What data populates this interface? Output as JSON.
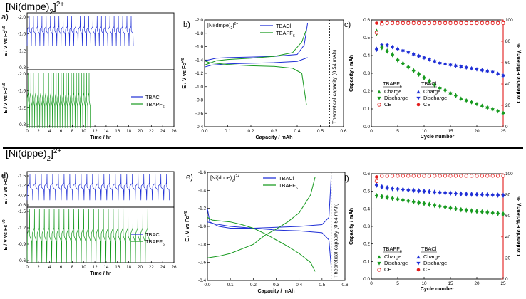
{
  "colors": {
    "blue": "#1f2fd6",
    "green": "#179a1f",
    "red": "#e21c1c",
    "black": "#000000"
  },
  "sections": [
    {
      "compound": "[Ni(dmpe)2]2+",
      "compound_sub": "2",
      "compound_sup": "2+",
      "compound_prefix": "[Ni(dmpe)",
      "compound_suffix": "]"
    },
    {
      "compound": "[Ni(dppe)2]2+",
      "compound_sub": "2",
      "compound_sup": "2+",
      "compound_prefix": "[Ni(dppe)",
      "compound_suffix": "]"
    }
  ],
  "chart_data": [
    {
      "id": "a",
      "panel_label": "a)",
      "type": "line",
      "xlabel": "Time / hr",
      "ylabel_top": "E / V vs Fc+/0",
      "ylabel_bottom": "E / V vs Fc+/0",
      "xlim": [
        0,
        26
      ],
      "xticks": [
        "0",
        "2",
        "4",
        "6",
        "8",
        "10",
        "12",
        "14",
        "16",
        "18",
        "20",
        "22",
        "24",
        "26"
      ],
      "top_yticks": [
        "-2.0",
        "-1.6",
        "-1.2",
        "-0.8"
      ],
      "bottom_yticks": [
        "-2.0",
        "-1.6",
        "-1.2",
        "-0.8"
      ],
      "series": [
        {
          "name": "TBACl",
          "color": "blue",
          "cycles": 25,
          "t_end": 18.8,
          "E_low": -1.32,
          "E_high": -2.02
        },
        {
          "name": "TBAPF6",
          "color": "green",
          "cycles": 25,
          "t_end": 11.2,
          "E_low": -0.72,
          "E_high": -2.02
        }
      ],
      "legend": [
        "TBACl",
        "TBAPF6"
      ]
    },
    {
      "id": "b",
      "panel_label": "b)",
      "type": "line",
      "inset_title": "[Ni(dmpe)2]2+",
      "xlabel": "Capacity / mAh",
      "ylabel": "E / V vs Fc+/0",
      "xlim": [
        0,
        0.6
      ],
      "ylim": [
        -0.4,
        -2.1
      ],
      "xticks": [
        "0.0",
        "0.1",
        "0.2",
        "0.3",
        "0.4",
        "0.5",
        "0.6"
      ],
      "yticks": [
        "-0.4",
        "-0.6",
        "-0.8",
        "-1.0",
        "-1.2",
        "-1.4",
        "-1.6",
        "-1.8",
        "-2.0"
      ],
      "theoretical_capacity": 0.54,
      "theoretical_label": "Theoretical capacity (0.54 mAh)",
      "series": [
        {
          "name": "TBACl",
          "color": "blue",
          "charge": [
            [
              0,
              -1.45
            ],
            [
              0.05,
              -1.49
            ],
            [
              0.1,
              -1.5
            ],
            [
              0.2,
              -1.51
            ],
            [
              0.3,
              -1.52
            ],
            [
              0.4,
              -1.55
            ],
            [
              0.43,
              -1.7
            ],
            [
              0.445,
              -2.05
            ]
          ],
          "discharge": [
            [
              0.445,
              -1.5
            ],
            [
              0.4,
              -1.44
            ],
            [
              0.3,
              -1.42
            ],
            [
              0.2,
              -1.41
            ],
            [
              0.1,
              -1.4
            ],
            [
              0.03,
              -1.38
            ],
            [
              0,
              -1.35
            ]
          ]
        },
        {
          "name": "TBAPF6",
          "color": "green",
          "charge": [
            [
              0,
              -1.38
            ],
            [
              0.05,
              -1.45
            ],
            [
              0.1,
              -1.47
            ],
            [
              0.2,
              -1.49
            ],
            [
              0.3,
              -1.52
            ],
            [
              0.38,
              -1.58
            ],
            [
              0.42,
              -1.75
            ],
            [
              0.44,
              -1.95
            ]
          ],
          "discharge": [
            [
              0.44,
              -0.75
            ],
            [
              0.42,
              -1.25
            ],
            [
              0.38,
              -1.33
            ],
            [
              0.3,
              -1.36
            ],
            [
              0.2,
              -1.37
            ],
            [
              0.1,
              -1.39
            ],
            [
              0.02,
              -1.42
            ],
            [
              0,
              -1.45
            ]
          ]
        }
      ],
      "legend": [
        "TBACl",
        "TBAPF6"
      ]
    },
    {
      "id": "c",
      "panel_label": "c)",
      "type": "scatter",
      "xlabel": "Cycle number",
      "ylabel": "Capacity / mAh",
      "ylabel_right": "Coulombic Efficiency, %",
      "xlim": [
        0,
        25
      ],
      "ylim": [
        0,
        0.6
      ],
      "ylim_right": [
        0,
        100
      ],
      "xticks": [
        "0",
        "5",
        "10",
        "15",
        "20",
        "25"
      ],
      "yticks": [
        "0.0",
        "0.1",
        "0.2",
        "0.3",
        "0.4",
        "0.5",
        "0.6"
      ],
      "yticks_right": [
        "0",
        "20",
        "40",
        "60",
        "80",
        "100"
      ],
      "series": [
        {
          "name": "TBACl Charge",
          "color": "blue",
          "marker": "triangle-up",
          "values": [
            0.44,
            0.46,
            0.46,
            0.45,
            0.44,
            0.43,
            0.42,
            0.41,
            0.4,
            0.39,
            0.38,
            0.37,
            0.36,
            0.355,
            0.35,
            0.345,
            0.34,
            0.335,
            0.33,
            0.325,
            0.32,
            0.315,
            0.31,
            0.3,
            0.29
          ]
        },
        {
          "name": "TBACl Discharge",
          "color": "blue",
          "marker": "triangle-down",
          "values": [
            0.43,
            0.455,
            0.455,
            0.445,
            0.435,
            0.425,
            0.415,
            0.405,
            0.395,
            0.385,
            0.375,
            0.365,
            0.355,
            0.35,
            0.345,
            0.34,
            0.335,
            0.33,
            0.325,
            0.32,
            0.315,
            0.31,
            0.305,
            0.295,
            0.285
          ]
        },
        {
          "name": "TBAPF6 Charge",
          "color": "green",
          "marker": "triangle-up",
          "values": [
            0.54,
            0.45,
            0.43,
            0.41,
            0.38,
            0.36,
            0.34,
            0.32,
            0.3,
            0.28,
            0.26,
            0.24,
            0.22,
            0.21,
            0.19,
            0.18,
            0.16,
            0.15,
            0.14,
            0.13,
            0.12,
            0.11,
            0.1,
            0.09,
            0.08
          ]
        },
        {
          "name": "TBAPF6 Discharge",
          "color": "green",
          "marker": "triangle-down",
          "values": [
            0.52,
            0.44,
            0.42,
            0.4,
            0.37,
            0.35,
            0.33,
            0.31,
            0.29,
            0.27,
            0.25,
            0.23,
            0.215,
            0.2,
            0.185,
            0.17,
            0.155,
            0.145,
            0.135,
            0.125,
            0.115,
            0.105,
            0.095,
            0.085,
            0.075
          ]
        },
        {
          "name": "TBACl CE",
          "color": "red",
          "marker": "circle",
          "axis": "right",
          "values": [
            97,
            98,
            98,
            98,
            98,
            98,
            98,
            98,
            98,
            98,
            98,
            98,
            98,
            98,
            98,
            98,
            98,
            98,
            98,
            98,
            98,
            98,
            98,
            98,
            98
          ]
        },
        {
          "name": "TBAPF6 CE",
          "color": "red",
          "marker": "open-circle",
          "axis": "right",
          "values": [
            88,
            96,
            97,
            97,
            97,
            97,
            97,
            97,
            97,
            97,
            97,
            97,
            97,
            97,
            97,
            97,
            97,
            97,
            97,
            97,
            97,
            97,
            97,
            97,
            97
          ]
        }
      ],
      "legend": {
        "group_left": "TBAPF6",
        "group_right": "TBACl",
        "rows": [
          "Charge",
          "Discharge",
          "CE"
        ]
      }
    },
    {
      "id": "d",
      "panel_label": "d)",
      "type": "line",
      "xlabel": "Time / hr",
      "ylabel_top": "E / V vs Fc+/0",
      "ylabel_bottom": "E / V vs Fc+/0",
      "xlim": [
        0,
        26
      ],
      "xticks": [
        "0",
        "2",
        "4",
        "6",
        "8",
        "10",
        "12",
        "14",
        "16",
        "18",
        "20",
        "22",
        "24",
        "26"
      ],
      "top_yticks": [
        "-1.5",
        "-1.2",
        "-0.9",
        "-0.6"
      ],
      "bottom_yticks": [
        "-1.5",
        "-1.2",
        "-0.9",
        "-0.6"
      ],
      "series": [
        {
          "name": "TBACl",
          "color": "blue",
          "cycles": 25,
          "t_end": 25.2,
          "E_low": -0.75,
          "E_high": -1.55
        },
        {
          "name": "TBAPF6",
          "color": "green",
          "cycles": 25,
          "t_end": 21.8,
          "E_low": -0.55,
          "E_high": -1.55
        }
      ],
      "legend": [
        "TBACl",
        "TBAPF6"
      ]
    },
    {
      "id": "e",
      "panel_label": "e)",
      "type": "line",
      "inset_title": "[Ni(dppe)2]2+",
      "xlabel": "Capacity / mAh",
      "ylabel": "E / V vs Fc+/0",
      "xlim": [
        0,
        0.6
      ],
      "ylim": [
        -0.4,
        -1.6
      ],
      "xticks": [
        "0.0",
        "0.1",
        "0.2",
        "0.3",
        "0.4",
        "0.5",
        "0.6"
      ],
      "yticks": [
        "-0.4",
        "-0.6",
        "-0.8",
        "-1.0",
        "-1.2",
        "-1.4",
        "-1.6"
      ],
      "theoretical_capacity": 0.54,
      "theoretical_label": "Theoretical capacity (0.54 mAh)",
      "series": [
        {
          "name": "TBACl",
          "color": "blue",
          "charge": [
            [
              0,
              -1.2
            ],
            [
              0.01,
              -1.05
            ],
            [
              0.05,
              -1.0
            ],
            [
              0.1,
              -0.98
            ],
            [
              0.2,
              -0.98
            ],
            [
              0.3,
              -0.99
            ],
            [
              0.4,
              -1.0
            ],
            [
              0.5,
              -1.02
            ],
            [
              0.53,
              -1.1
            ],
            [
              0.54,
              -1.55
            ]
          ],
          "discharge": [
            [
              0.54,
              -0.55
            ],
            [
              0.53,
              -0.85
            ],
            [
              0.5,
              -0.93
            ],
            [
              0.4,
              -0.95
            ],
            [
              0.3,
              -0.96
            ],
            [
              0.2,
              -0.98
            ],
            [
              0.1,
              -1.0
            ],
            [
              0.03,
              -1.03
            ],
            [
              0,
              -1.05
            ]
          ]
        },
        {
          "name": "TBAPF6",
          "color": "green",
          "charge": [
            [
              0,
              -0.65
            ],
            [
              0.05,
              -0.67
            ],
            [
              0.1,
              -0.7
            ],
            [
              0.2,
              -0.8
            ],
            [
              0.25,
              -0.9
            ],
            [
              0.3,
              -0.97
            ],
            [
              0.35,
              -1.05
            ],
            [
              0.4,
              -1.15
            ],
            [
              0.45,
              -1.35
            ],
            [
              0.47,
              -1.55
            ]
          ],
          "discharge": [
            [
              0.47,
              -0.5
            ],
            [
              0.45,
              -0.6
            ],
            [
              0.4,
              -0.7
            ],
            [
              0.35,
              -0.78
            ],
            [
              0.3,
              -0.85
            ],
            [
              0.25,
              -0.92
            ],
            [
              0.2,
              -0.98
            ],
            [
              0.15,
              -1.02
            ],
            [
              0.1,
              -1.05
            ],
            [
              0.02,
              -1.07
            ],
            [
              0,
              -1.1
            ]
          ]
        }
      ],
      "legend": [
        "TBACl",
        "TBAPF6"
      ]
    },
    {
      "id": "f",
      "panel_label": "f)",
      "type": "scatter",
      "xlabel": "Cycle number",
      "ylabel": "Capacity / mAh",
      "ylabel_right": "Coulombic Efficiency, %",
      "xlim": [
        0,
        25
      ],
      "ylim": [
        0,
        0.6
      ],
      "ylim_right": [
        0,
        100
      ],
      "xticks": [
        "0",
        "5",
        "10",
        "15",
        "20",
        "25"
      ],
      "yticks": [
        "0.0",
        "0.1",
        "0.2",
        "0.3",
        "0.4",
        "0.5",
        "0.6"
      ],
      "yticks_right": [
        "0",
        "20",
        "40",
        "60",
        "80",
        "100"
      ],
      "series": [
        {
          "name": "TBACl Charge",
          "color": "blue",
          "marker": "triangle-up",
          "values": [
            0.54,
            0.53,
            0.525,
            0.52,
            0.518,
            0.515,
            0.512,
            0.51,
            0.508,
            0.505,
            0.503,
            0.5,
            0.498,
            0.496,
            0.494,
            0.492,
            0.49,
            0.489,
            0.488,
            0.487,
            0.486,
            0.485,
            0.484,
            0.483,
            0.482
          ]
        },
        {
          "name": "TBACl Discharge",
          "color": "blue",
          "marker": "triangle-down",
          "values": [
            0.53,
            0.52,
            0.515,
            0.51,
            0.508,
            0.505,
            0.502,
            0.5,
            0.498,
            0.495,
            0.493,
            0.49,
            0.488,
            0.486,
            0.484,
            0.482,
            0.48,
            0.479,
            0.478,
            0.477,
            0.476,
            0.475,
            0.474,
            0.473,
            0.472
          ]
        },
        {
          "name": "TBAPF6 Charge",
          "color": "green",
          "marker": "triangle-up",
          "values": [
            0.48,
            0.475,
            0.47,
            0.465,
            0.46,
            0.455,
            0.45,
            0.445,
            0.44,
            0.435,
            0.43,
            0.425,
            0.42,
            0.415,
            0.41,
            0.405,
            0.4,
            0.397,
            0.394,
            0.391,
            0.388,
            0.385,
            0.382,
            0.379,
            0.376
          ]
        },
        {
          "name": "TBAPF6 Discharge",
          "color": "green",
          "marker": "triangle-down",
          "values": [
            0.47,
            0.465,
            0.46,
            0.455,
            0.45,
            0.445,
            0.44,
            0.435,
            0.43,
            0.425,
            0.42,
            0.415,
            0.41,
            0.405,
            0.4,
            0.395,
            0.39,
            0.387,
            0.384,
            0.381,
            0.378,
            0.375,
            0.372,
            0.369,
            0.366
          ]
        },
        {
          "name": "TBACl CE",
          "color": "red",
          "marker": "circle",
          "axis": "right",
          "values": [
            97,
            98,
            98,
            98,
            98,
            98,
            98,
            98,
            98,
            98,
            98,
            98,
            98,
            98,
            98,
            98,
            98,
            98,
            98,
            98,
            98,
            98,
            98,
            98,
            98
          ]
        },
        {
          "name": "TBAPF6 CE",
          "color": "red",
          "marker": "open-circle",
          "axis": "right",
          "values": [
            93,
            98,
            98,
            98,
            98,
            98,
            98,
            98,
            98,
            98,
            98,
            98,
            98,
            98,
            98,
            98,
            98,
            98,
            98,
            98,
            98,
            98,
            98,
            98,
            98
          ]
        }
      ],
      "legend": {
        "group_left": "TBAPF6",
        "group_right": "TBACl",
        "rows": [
          "Charge",
          "Discharge",
          "CE"
        ]
      }
    }
  ]
}
